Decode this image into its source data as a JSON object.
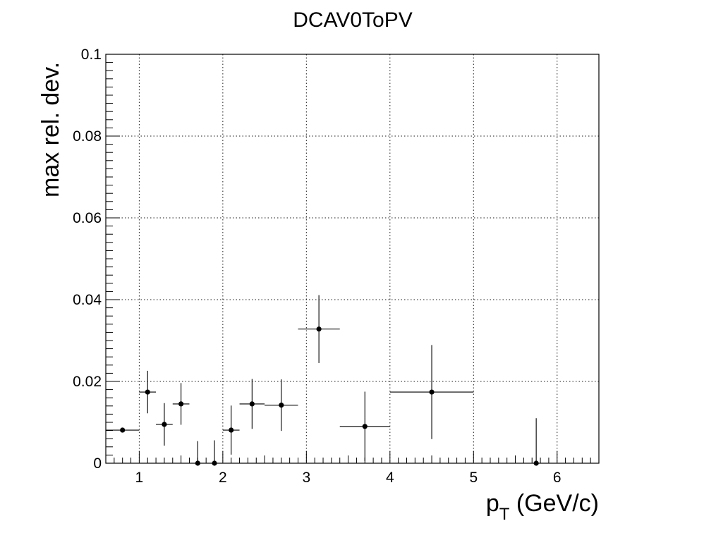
{
  "chart_data": {
    "type": "scatter",
    "title": "DCAV0ToPV",
    "ylabel": "max rel. dev.",
    "xlabel_main": "p",
    "xlabel_sub": "T",
    "xlabel_unit": " (GeV/c)",
    "xlim": [
      0.6,
      6.5
    ],
    "ylim": [
      0,
      0.1
    ],
    "x_ticks": [
      {
        "value": 1,
        "label": "1"
      },
      {
        "value": 2,
        "label": "2"
      },
      {
        "value": 3,
        "label": "3"
      },
      {
        "value": 4,
        "label": "4"
      },
      {
        "value": 5,
        "label": "5"
      },
      {
        "value": 6,
        "label": "6"
      }
    ],
    "y_ticks": [
      {
        "value": 0,
        "label": "0"
      },
      {
        "value": 0.02,
        "label": "0.02"
      },
      {
        "value": 0.04,
        "label": "0.04"
      },
      {
        "value": 0.06,
        "label": "0.06"
      },
      {
        "value": 0.08,
        "label": "0.08"
      },
      {
        "value": 0.1,
        "label": "0.1"
      }
    ],
    "grid": true,
    "points": [
      {
        "x": 0.8,
        "xerr": 0.2,
        "y": 0.0081,
        "yerr": 0.0
      },
      {
        "x": 1.1,
        "xerr": 0.1,
        "y": 0.0174,
        "yerr": 0.0052
      },
      {
        "x": 1.3,
        "xerr": 0.1,
        "y": 0.0095,
        "yerr": 0.0052
      },
      {
        "x": 1.5,
        "xerr": 0.1,
        "y": 0.0145,
        "yerr": 0.0051
      },
      {
        "x": 1.7,
        "xerr": 0.1,
        "y": 0.0,
        "yerr": 0.0054
      },
      {
        "x": 1.9,
        "xerr": 0.1,
        "y": 0.0,
        "yerr": 0.0056
      },
      {
        "x": 2.1,
        "xerr": 0.1,
        "y": 0.0081,
        "yerr": 0.006
      },
      {
        "x": 2.35,
        "xerr": 0.15,
        "y": 0.0145,
        "yerr": 0.0061
      },
      {
        "x": 2.7,
        "xerr": 0.2,
        "y": 0.0142,
        "yerr": 0.0063
      },
      {
        "x": 3.15,
        "xerr": 0.25,
        "y": 0.0328,
        "yerr": 0.0083
      },
      {
        "x": 3.7,
        "xerr": 0.3,
        "y": 0.009,
        "yerr": 0.0085
      },
      {
        "x": 4.5,
        "xerr": 0.5,
        "y": 0.0174,
        "yerr": 0.0115
      },
      {
        "x": 5.75,
        "xerr": 0.75,
        "y": 0.0,
        "yerr": 0.011
      }
    ]
  }
}
